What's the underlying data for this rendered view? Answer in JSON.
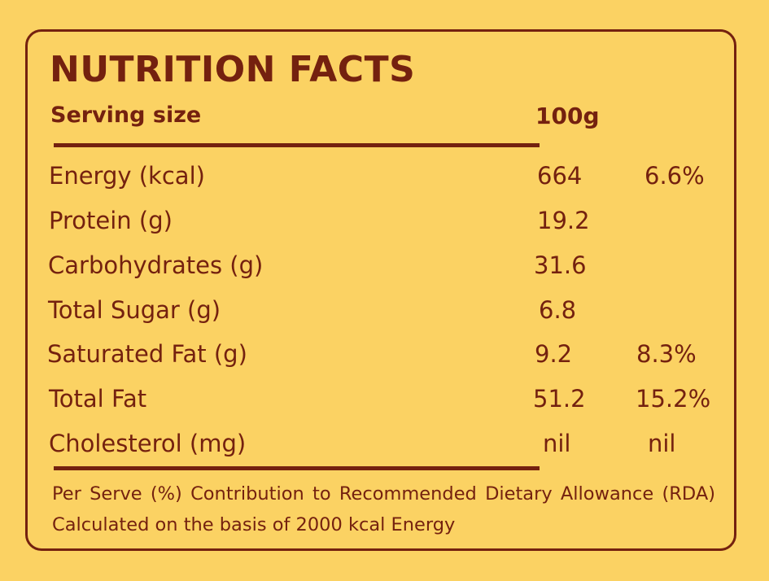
{
  "title": "NUTRITION FACTS",
  "serving": {
    "label": "Serving size",
    "value": "100g"
  },
  "rows": [
    {
      "label": "Energy (kcal)",
      "value": "664",
      "rda": "6.6%"
    },
    {
      "label": "Protein (g)",
      "value": "19.2",
      "rda": ""
    },
    {
      "label": "Carbohydrates (g)",
      "value": "31.6",
      "rda": ""
    },
    {
      "label": "Total Sugar (g)",
      "value": "6.8",
      "rda": ""
    },
    {
      "label": "Saturated Fat (g)",
      "value": "9.2",
      "rda": "8.3%"
    },
    {
      "label": "Total Fat",
      "value": "51.2",
      "rda": "15.2%"
    },
    {
      "label": "Cholesterol (mg)",
      "value": "nil",
      "rda": "nil"
    }
  ],
  "footnote": "Per Serve (%) Contribution to Recommended Dietary Allowance (RDA) Calculated on the basis of 2000 kcal Energy",
  "colors": {
    "background": "#fbd263",
    "text": "#74210f"
  }
}
